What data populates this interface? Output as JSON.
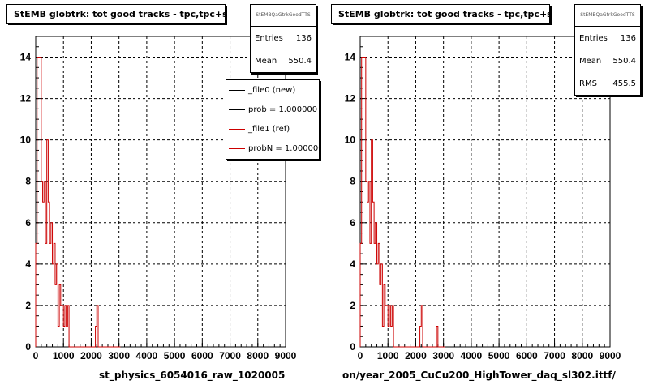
{
  "footer_note": "…… … ……… ………",
  "panels": [
    {
      "title": "StEMB globtrk: tot good tracks - tpc,tpc+svt",
      "stats_title": "StEMBQaGtrkGoodTTS",
      "stats": [
        {
          "label": "Entries",
          "value": "136"
        },
        {
          "label": "Mean",
          "value": "550.4"
        }
      ],
      "legend": [
        {
          "label": "_file0 (new)",
          "color": "#000000"
        },
        {
          "label": "prob = 1.000000",
          "color": "#000000"
        },
        {
          "label": "_file1 (ref)",
          "color": "#cc0000"
        },
        {
          "label": "probN = 1.000000",
          "color": "#cc0000"
        }
      ],
      "filename": "st_physics_6054016_raw_1020005"
    },
    {
      "title": "StEMB globtrk: tot good tracks - tpc,tpc+svt",
      "stats_title": "StEMBQaGtrkGoodTTS",
      "stats": [
        {
          "label": "Entries",
          "value": "136"
        },
        {
          "label": "Mean",
          "value": "550.4"
        },
        {
          "label": "RMS",
          "value": "455.5"
        }
      ],
      "legend": [],
      "filename": "on/year_2005_CuCu200_HighTower_daq_sl302.ittf/"
    }
  ],
  "chart_data": [
    {
      "type": "histogram-step",
      "title": "StEMB globtrk: tot good tracks - tpc,tpc+svt",
      "xlim": [
        0,
        9000
      ],
      "ylim": [
        0,
        15
      ],
      "xticks": [
        0,
        1000,
        2000,
        3000,
        4000,
        5000,
        6000,
        7000,
        8000,
        9000
      ],
      "yticks": [
        0,
        2,
        4,
        6,
        8,
        10,
        12,
        14
      ],
      "grid": true,
      "bin_width": 50,
      "series": [
        {
          "name": "_file1 (ref)",
          "color": "#cc0000",
          "values": [
            5,
            14,
            14,
            14,
            8,
            7,
            8,
            5,
            10,
            7,
            5,
            6,
            4,
            5,
            3,
            4,
            1,
            3,
            2,
            2,
            1,
            2,
            1,
            2,
            0,
            0,
            0,
            0,
            0,
            0,
            0,
            0,
            0,
            0,
            0,
            0,
            0,
            0,
            0,
            0,
            0,
            0,
            0,
            1,
            2,
            0,
            0,
            0,
            0,
            0,
            0,
            0,
            0,
            0,
            0,
            0,
            0,
            0,
            0,
            0,
            0
          ]
        }
      ]
    },
    {
      "type": "histogram-step",
      "title": "StEMB globtrk: tot good tracks - tpc,tpc+svt",
      "xlim": [
        0,
        9000
      ],
      "ylim": [
        0,
        15
      ],
      "xticks": [
        0,
        1000,
        2000,
        3000,
        4000,
        5000,
        6000,
        7000,
        8000,
        9000
      ],
      "yticks": [
        0,
        2,
        4,
        6,
        8,
        10,
        12,
        14
      ],
      "grid": true,
      "bin_width": 50,
      "series": [
        {
          "name": "",
          "color": "#cc0000",
          "values": [
            5,
            14,
            14,
            14,
            8,
            7,
            8,
            5,
            10,
            7,
            5,
            6,
            4,
            5,
            3,
            4,
            1,
            3,
            2,
            2,
            1,
            2,
            1,
            2,
            0,
            0,
            0,
            0,
            0,
            0,
            0,
            0,
            0,
            0,
            0,
            0,
            0,
            0,
            0,
            0,
            0,
            0,
            0,
            1,
            2,
            0,
            0,
            0,
            0,
            0,
            0,
            0,
            0,
            0,
            0,
            1,
            0,
            0,
            0,
            0,
            0
          ]
        }
      ]
    }
  ]
}
